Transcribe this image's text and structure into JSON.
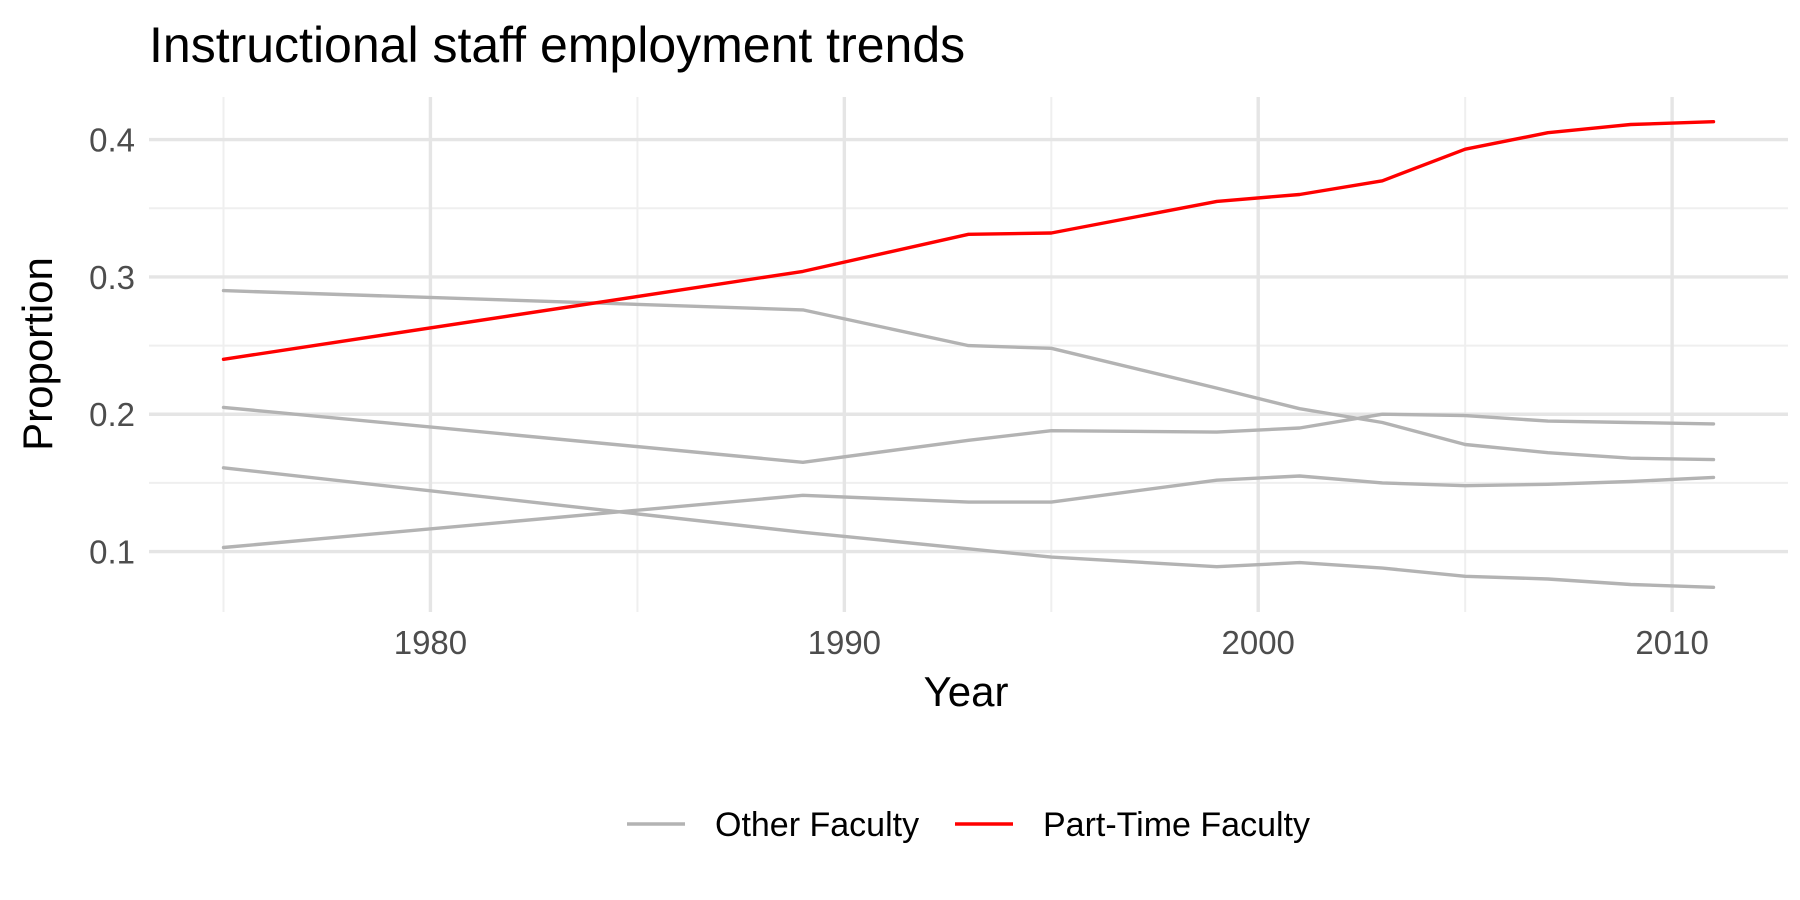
{
  "chart_data": {
    "type": "line",
    "title": "Instructional staff employment trends",
    "xlabel": "Year",
    "ylabel": "Proportion",
    "xlim": [
      1973.2,
      2012.8
    ],
    "ylim": [
      0.056,
      0.431
    ],
    "x_ticks": [
      1980,
      1990,
      2000,
      2010
    ],
    "x_tick_labels": [
      "1980",
      "1990",
      "2000",
      "2010"
    ],
    "y_ticks": [
      0.1,
      0.2,
      0.3,
      0.4
    ],
    "y_tick_labels": [
      "0.1",
      "0.2",
      "0.3",
      "0.4"
    ],
    "grid": true,
    "legend_position": "bottom",
    "legend": [
      {
        "label": "Other Faculty",
        "color": "#b3b3b3"
      },
      {
        "label": "Part-Time Faculty",
        "color": "#ff0000"
      }
    ],
    "x": [
      1975,
      1989,
      1993,
      1995,
      1999,
      2001,
      2003,
      2005,
      2007,
      2009,
      2011
    ],
    "series": [
      {
        "group": "Other Faculty",
        "color": "#b3b3b3",
        "values": [
          0.29,
          0.276,
          0.25,
          0.248,
          0.219,
          0.204,
          0.194,
          0.178,
          0.172,
          0.168,
          0.167
        ]
      },
      {
        "group": "Other Faculty",
        "color": "#b3b3b3",
        "values": [
          0.205,
          0.165,
          0.181,
          0.188,
          0.187,
          0.19,
          0.2,
          0.199,
          0.195,
          0.194,
          0.193
        ]
      },
      {
        "group": "Other Faculty",
        "color": "#b3b3b3",
        "values": [
          0.103,
          0.141,
          0.136,
          0.136,
          0.152,
          0.155,
          0.15,
          0.148,
          0.149,
          0.151,
          0.154
        ]
      },
      {
        "group": "Other Faculty",
        "color": "#b3b3b3",
        "values": [
          0.161,
          0.114,
          0.102,
          0.096,
          0.089,
          0.092,
          0.088,
          0.082,
          0.08,
          0.076,
          0.074
        ]
      },
      {
        "name": "Part-Time Faculty",
        "group": "Part-Time Faculty",
        "color": "#ff0000",
        "values": [
          0.24,
          0.304,
          0.331,
          0.332,
          0.355,
          0.36,
          0.37,
          0.393,
          0.405,
          0.411,
          0.413
        ]
      }
    ]
  }
}
